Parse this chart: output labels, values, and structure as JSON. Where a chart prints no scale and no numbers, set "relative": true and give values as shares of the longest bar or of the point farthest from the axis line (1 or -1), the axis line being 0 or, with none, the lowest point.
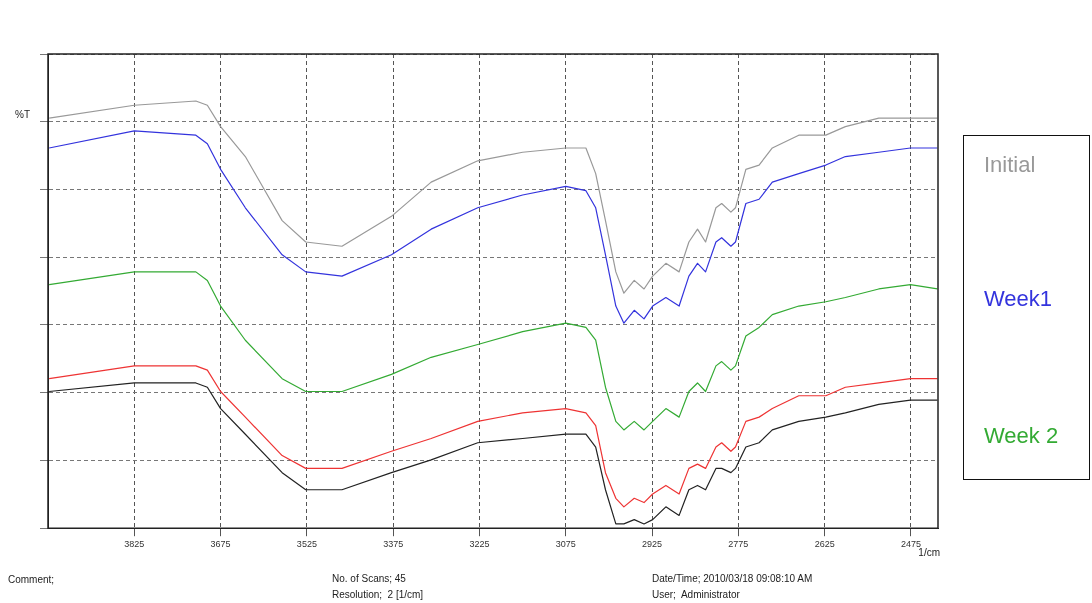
{
  "chart_data": {
    "type": "line",
    "relative": true,
    "ylabel": "%T",
    "xlabel": "1/cm",
    "x": [
      3973,
      3825,
      3718,
      3698,
      3675,
      3632,
      3568,
      3527,
      3464,
      3378,
      3309,
      3228,
      3150,
      3075,
      3040,
      3023,
      3006,
      2988,
      2974,
      2956,
      2939,
      2924,
      2901,
      2878,
      2861,
      2846,
      2832,
      2814,
      2804,
      2788,
      2780,
      2762,
      2739,
      2716,
      2670,
      2623,
      2589,
      2531,
      2476,
      2429
    ],
    "xlim": [
      3975,
      2428
    ],
    "xticks": [
      3825,
      3675,
      3525,
      3375,
      3225,
      3075,
      2925,
      2775,
      2625,
      2475
    ],
    "grid": true,
    "line_style": "solid",
    "series": [
      {
        "color": "#999999",
        "values": [
          0.96,
          0.99,
          1.0,
          0.99,
          0.94,
          0.87,
          0.72,
          0.67,
          0.66,
          0.73,
          0.81,
          0.86,
          0.88,
          0.89,
          0.89,
          0.83,
          0.72,
          0.6,
          0.55,
          0.58,
          0.56,
          0.59,
          0.62,
          0.6,
          0.67,
          0.7,
          0.67,
          0.75,
          0.76,
          0.74,
          0.75,
          0.84,
          0.85,
          0.89,
          0.92,
          0.92,
          0.94,
          0.96,
          0.96,
          0.96
        ]
      },
      {
        "color": "#3333dd",
        "values": [
          0.89,
          0.93,
          0.92,
          0.9,
          0.84,
          0.75,
          0.64,
          0.6,
          0.59,
          0.64,
          0.7,
          0.75,
          0.78,
          0.8,
          0.79,
          0.75,
          0.64,
          0.52,
          0.48,
          0.51,
          0.49,
          0.52,
          0.54,
          0.52,
          0.59,
          0.62,
          0.6,
          0.67,
          0.68,
          0.66,
          0.67,
          0.76,
          0.77,
          0.81,
          0.83,
          0.85,
          0.87,
          0.88,
          0.89,
          0.89
        ]
      },
      {
        "color": "#33aa33",
        "values": [
          0.57,
          0.6,
          0.6,
          0.58,
          0.52,
          0.44,
          0.35,
          0.32,
          0.32,
          0.36,
          0.4,
          0.43,
          0.46,
          0.48,
          0.47,
          0.44,
          0.33,
          0.25,
          0.23,
          0.25,
          0.23,
          0.25,
          0.28,
          0.26,
          0.32,
          0.34,
          0.32,
          0.38,
          0.39,
          0.37,
          0.38,
          0.45,
          0.47,
          0.5,
          0.52,
          0.53,
          0.54,
          0.56,
          0.57,
          0.56
        ]
      },
      {
        "color": "#ee3333",
        "values": [
          0.35,
          0.38,
          0.38,
          0.37,
          0.32,
          0.26,
          0.17,
          0.14,
          0.14,
          0.18,
          0.21,
          0.25,
          0.27,
          0.28,
          0.27,
          0.24,
          0.13,
          0.07,
          0.05,
          0.07,
          0.06,
          0.08,
          0.1,
          0.08,
          0.14,
          0.15,
          0.14,
          0.19,
          0.2,
          0.18,
          0.19,
          0.25,
          0.26,
          0.28,
          0.31,
          0.31,
          0.33,
          0.34,
          0.35,
          0.35
        ]
      },
      {
        "color": "#222222",
        "values": [
          0.32,
          0.34,
          0.34,
          0.33,
          0.28,
          0.22,
          0.13,
          0.09,
          0.09,
          0.13,
          0.16,
          0.2,
          0.21,
          0.22,
          0.22,
          0.19,
          0.09,
          0.01,
          0.01,
          0.02,
          0.01,
          0.02,
          0.05,
          0.03,
          0.09,
          0.1,
          0.09,
          0.14,
          0.14,
          0.13,
          0.14,
          0.19,
          0.2,
          0.23,
          0.25,
          0.26,
          0.27,
          0.29,
          0.3,
          0.3
        ]
      }
    ],
    "annotations": [
      "Initial",
      "Week1",
      "Week 2",
      "Comment;",
      "No. of Scans; 45",
      "Resolution;  2 [1/cm]",
      "Date/Time; 2010/03/18 09:08:10 AM",
      "User;  Administrator"
    ]
  }
}
